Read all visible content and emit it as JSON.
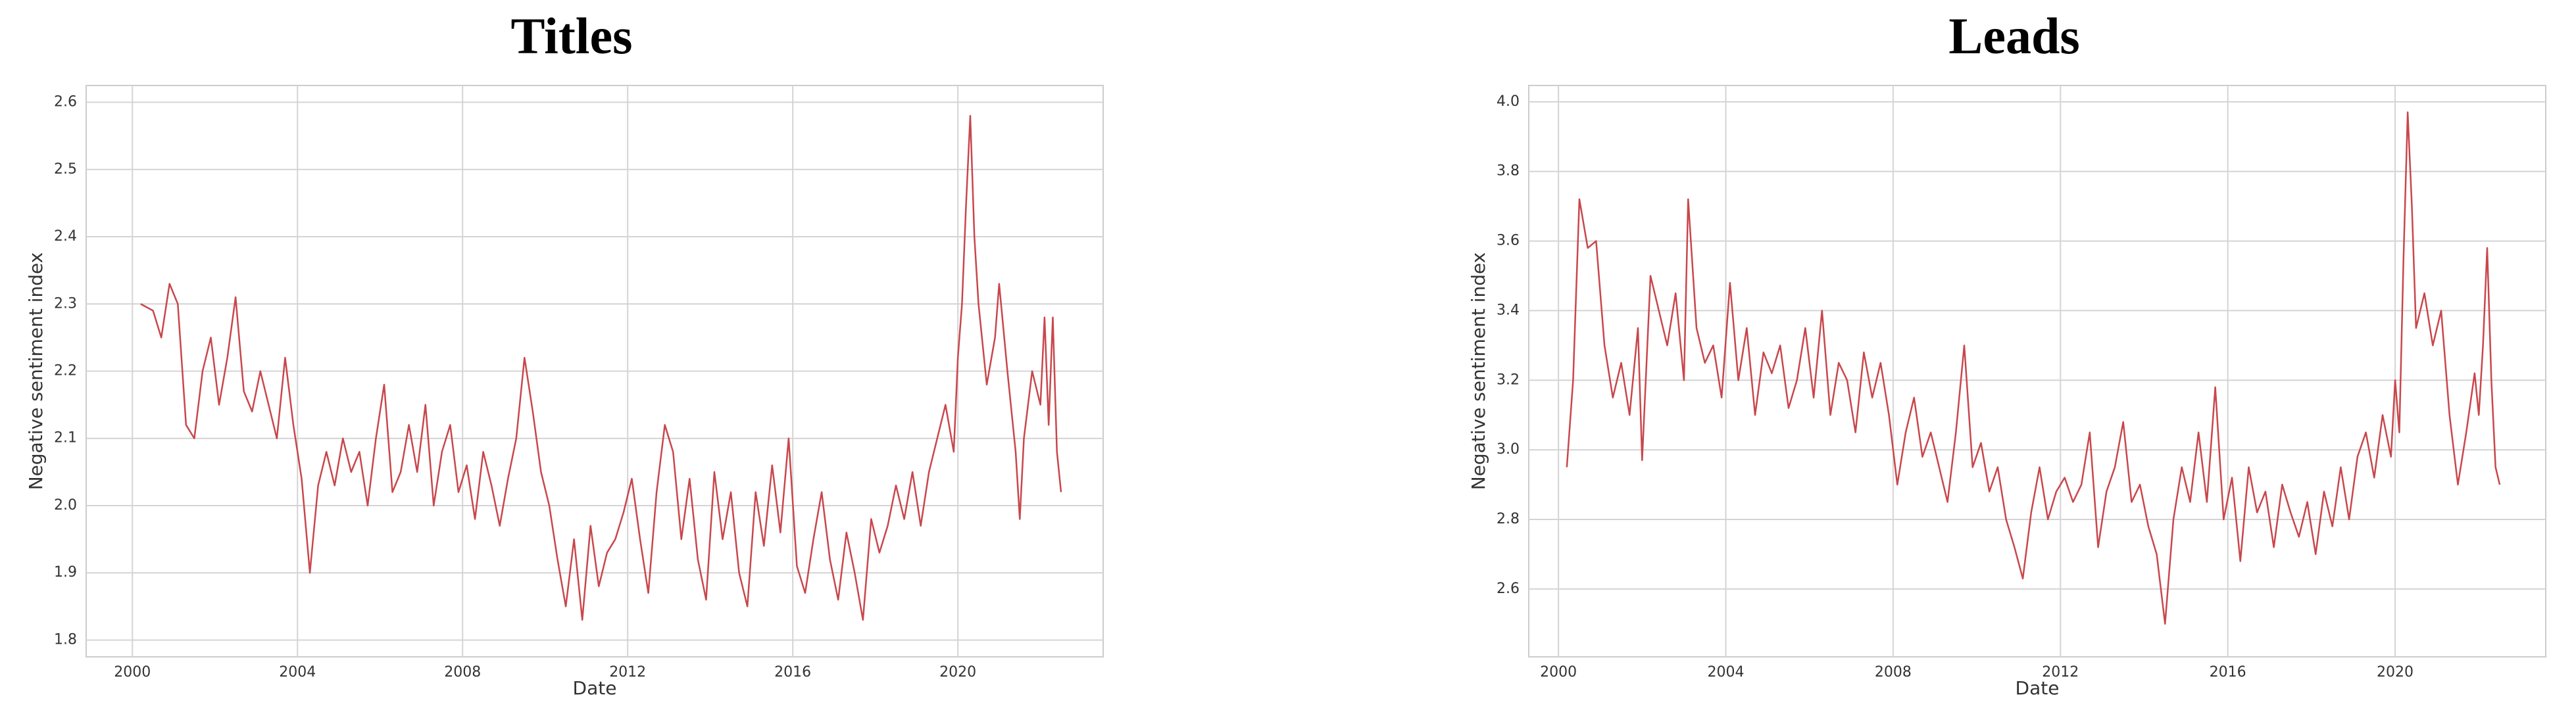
{
  "chart_data": [
    {
      "type": "line",
      "title": "Titles",
      "xlabel": "Date",
      "ylabel": "Negative sentiment index",
      "color": "#c8474c",
      "grid": true,
      "xlim": [
        1998.88,
        2023.52
      ],
      "ylim": [
        1.775,
        2.625
      ],
      "xticks": [
        2000,
        2004,
        2008,
        2012,
        2016,
        2020
      ],
      "yticks": [
        1.8,
        1.9,
        {
          "value": 2,
          "label": "2.0"
        },
        2.1,
        2.2,
        2.3,
        2.4,
        2.5,
        2.6
      ],
      "x": [
        2000.2,
        2000.5,
        2000.7,
        2000.9,
        2001.1,
        2001.3,
        2001.5,
        2001.7,
        2001.9,
        2002.1,
        2002.3,
        2002.5,
        2002.7,
        2002.9,
        2003.1,
        2003.3,
        2003.5,
        2003.7,
        2003.9,
        2004.1,
        2004.3,
        2004.5,
        2004.7,
        2004.9,
        2005.1,
        2005.3,
        2005.5,
        2005.7,
        2005.9,
        2006.1,
        2006.3,
        2006.5,
        2006.7,
        2006.9,
        2007.1,
        2007.3,
        2007.5,
        2007.7,
        2007.9,
        2008.1,
        2008.3,
        2008.5,
        2008.7,
        2008.9,
        2009.1,
        2009.3,
        2009.5,
        2009.7,
        2009.9,
        2010.1,
        2010.3,
        2010.5,
        2010.7,
        2010.9,
        2011.1,
        2011.3,
        2011.5,
        2011.7,
        2011.9,
        2012.1,
        2012.3,
        2012.5,
        2012.7,
        2012.9,
        2013.1,
        2013.3,
        2013.5,
        2013.7,
        2013.9,
        2014.1,
        2014.3,
        2014.5,
        2014.7,
        2014.9,
        2015.1,
        2015.3,
        2015.5,
        2015.7,
        2015.9,
        2016.1,
        2016.3,
        2016.5,
        2016.7,
        2016.9,
        2017.1,
        2017.3,
        2017.5,
        2017.7,
        2017.9,
        2018.1,
        2018.3,
        2018.5,
        2018.7,
        2018.9,
        2019.1,
        2019.3,
        2019.5,
        2019.7,
        2019.9,
        2020.0,
        2020.1,
        2020.2,
        2020.3,
        2020.4,
        2020.5,
        2020.7,
        2020.9,
        2021.0,
        2021.2,
        2021.4,
        2021.5,
        2021.6,
        2021.8,
        2022.0,
        2022.1,
        2022.2,
        2022.3,
        2022.4,
        2022.5
      ],
      "values": [
        2.3,
        2.29,
        2.25,
        2.33,
        2.3,
        2.12,
        2.1,
        2.2,
        2.25,
        2.15,
        2.22,
        2.31,
        2.17,
        2.14,
        2.2,
        2.15,
        2.1,
        2.22,
        2.12,
        2.04,
        1.9,
        2.03,
        2.08,
        2.03,
        2.1,
        2.05,
        2.08,
        2.0,
        2.1,
        2.18,
        2.02,
        2.05,
        2.12,
        2.05,
        2.15,
        2.0,
        2.08,
        2.12,
        2.02,
        2.06,
        1.98,
        2.08,
        2.03,
        1.97,
        2.04,
        2.1,
        2.22,
        2.14,
        2.05,
        2.0,
        1.92,
        1.85,
        1.95,
        1.83,
        1.97,
        1.88,
        1.93,
        1.95,
        1.99,
        2.04,
        1.95,
        1.87,
        2.02,
        2.12,
        2.08,
        1.95,
        2.04,
        1.92,
        1.86,
        2.05,
        1.95,
        2.02,
        1.9,
        1.85,
        2.02,
        1.94,
        2.06,
        1.96,
        2.1,
        1.91,
        1.87,
        1.95,
        2.02,
        1.92,
        1.86,
        1.96,
        1.9,
        1.83,
        1.98,
        1.93,
        1.97,
        2.03,
        1.98,
        2.05,
        1.97,
        2.05,
        2.1,
        2.15,
        2.08,
        2.22,
        2.3,
        2.45,
        2.58,
        2.4,
        2.3,
        2.18,
        2.25,
        2.33,
        2.2,
        2.08,
        1.98,
        2.1,
        2.2,
        2.15,
        2.28,
        2.12,
        2.28,
        2.08,
        2.02
      ]
    },
    {
      "type": "line",
      "title": "Leads",
      "xlabel": "Date",
      "ylabel": "Negative sentiment index",
      "color": "#c8474c",
      "grid": true,
      "xlim": [
        1999.29,
        2023.6
      ],
      "ylim": [
        2.405,
        4.047
      ],
      "xticks": [
        2000,
        2004,
        2008,
        2012,
        2016,
        2020
      ],
      "yticks": [
        2.6,
        2.8,
        {
          "value": 3,
          "label": "3.0"
        },
        3.2,
        3.4,
        3.6,
        3.8,
        {
          "value": 4,
          "label": "4.0"
        }
      ],
      "x": [
        2000.2,
        2000.35,
        2000.5,
        2000.7,
        2000.9,
        2001.1,
        2001.3,
        2001.5,
        2001.7,
        2001.9,
        2002.0,
        2002.2,
        2002.4,
        2002.6,
        2002.8,
        2003.0,
        2003.1,
        2003.3,
        2003.5,
        2003.7,
        2003.9,
        2004.1,
        2004.3,
        2004.5,
        2004.7,
        2004.9,
        2005.1,
        2005.3,
        2005.5,
        2005.7,
        2005.9,
        2006.1,
        2006.3,
        2006.5,
        2006.7,
        2006.9,
        2007.1,
        2007.3,
        2007.5,
        2007.7,
        2007.9,
        2008.1,
        2008.3,
        2008.5,
        2008.7,
        2008.9,
        2009.1,
        2009.3,
        2009.5,
        2009.7,
        2009.9,
        2010.1,
        2010.3,
        2010.5,
        2010.7,
        2010.9,
        2011.1,
        2011.3,
        2011.5,
        2011.7,
        2011.9,
        2012.1,
        2012.3,
        2012.5,
        2012.7,
        2012.9,
        2013.1,
        2013.3,
        2013.5,
        2013.7,
        2013.9,
        2014.1,
        2014.3,
        2014.5,
        2014.7,
        2014.9,
        2015.1,
        2015.3,
        2015.5,
        2015.7,
        2015.9,
        2016.1,
        2016.3,
        2016.5,
        2016.7,
        2016.9,
        2017.1,
        2017.3,
        2017.5,
        2017.7,
        2017.9,
        2018.1,
        2018.3,
        2018.5,
        2018.7,
        2018.9,
        2019.1,
        2019.3,
        2019.5,
        2019.7,
        2019.9,
        2020.0,
        2020.1,
        2020.2,
        2020.3,
        2020.4,
        2020.5,
        2020.7,
        2020.9,
        2021.1,
        2021.3,
        2021.5,
        2021.7,
        2021.9,
        2022.0,
        2022.1,
        2022.2,
        2022.3,
        2022.4,
        2022.5
      ],
      "values": [
        2.95,
        3.2,
        3.72,
        3.58,
        3.6,
        3.3,
        3.15,
        3.25,
        3.1,
        3.35,
        2.97,
        3.5,
        3.4,
        3.3,
        3.45,
        3.2,
        3.72,
        3.35,
        3.25,
        3.3,
        3.15,
        3.48,
        3.2,
        3.35,
        3.1,
        3.28,
        3.22,
        3.3,
        3.12,
        3.2,
        3.35,
        3.15,
        3.4,
        3.1,
        3.25,
        3.2,
        3.05,
        3.28,
        3.15,
        3.25,
        3.1,
        2.9,
        3.05,
        3.15,
        2.98,
        3.05,
        2.95,
        2.85,
        3.05,
        3.3,
        2.95,
        3.02,
        2.88,
        2.95,
        2.8,
        2.72,
        2.63,
        2.82,
        2.95,
        2.8,
        2.88,
        2.92,
        2.85,
        2.9,
        3.05,
        2.72,
        2.88,
        2.95,
        3.08,
        2.85,
        2.9,
        2.78,
        2.7,
        2.5,
        2.8,
        2.95,
        2.85,
        3.05,
        2.85,
        3.18,
        2.8,
        2.92,
        2.68,
        2.95,
        2.82,
        2.88,
        2.72,
        2.9,
        2.82,
        2.75,
        2.85,
        2.7,
        2.88,
        2.78,
        2.95,
        2.8,
        2.98,
        3.05,
        2.92,
        3.1,
        2.98,
        3.2,
        3.05,
        3.55,
        3.97,
        3.7,
        3.35,
        3.45,
        3.3,
        3.4,
        3.1,
        2.9,
        3.05,
        3.22,
        3.1,
        3.3,
        3.58,
        3.2,
        2.95,
        2.9
      ]
    }
  ]
}
